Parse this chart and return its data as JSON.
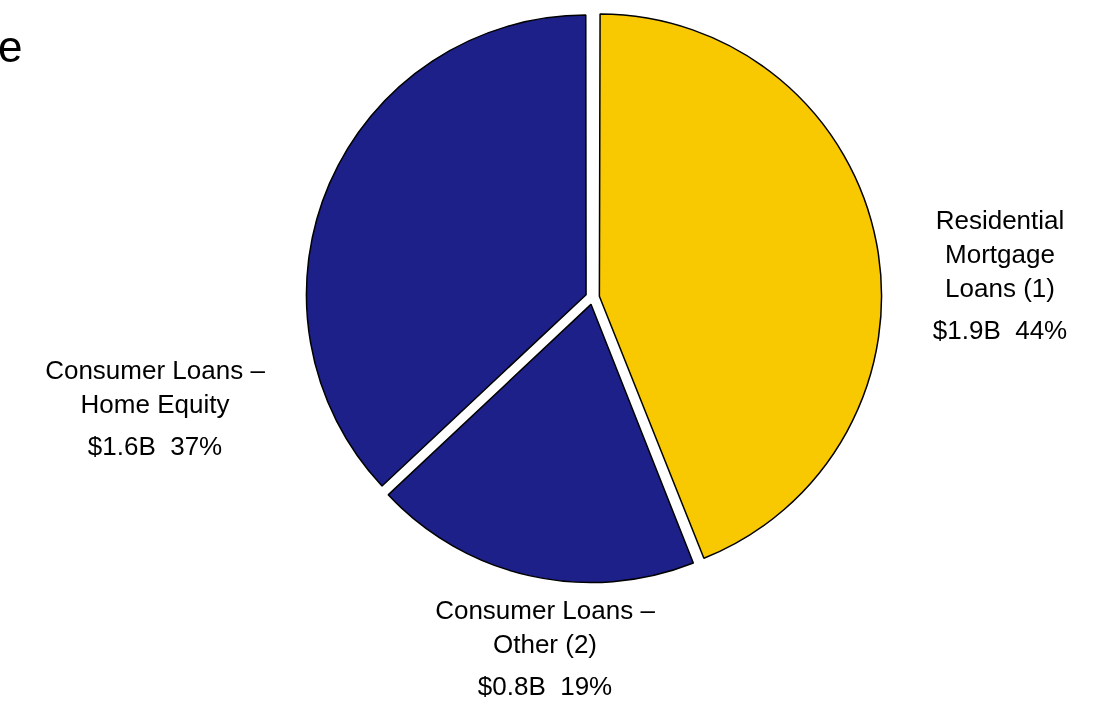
{
  "chart_data": {
    "type": "pie",
    "title": "e",
    "categories": [
      "Residential Mortgage Loans (1)",
      "Consumer Loans – Other (2)",
      "Consumer Loans – Home Equity"
    ],
    "values": [
      44,
      19,
      37
    ],
    "colors": [
      "#f8c800",
      "#1c2088",
      "#1c2088"
    ],
    "value_labels": [
      "$1.9B  44%",
      "$0.8B  19%",
      "$1.6B  37%"
    ],
    "legend": false
  }
}
